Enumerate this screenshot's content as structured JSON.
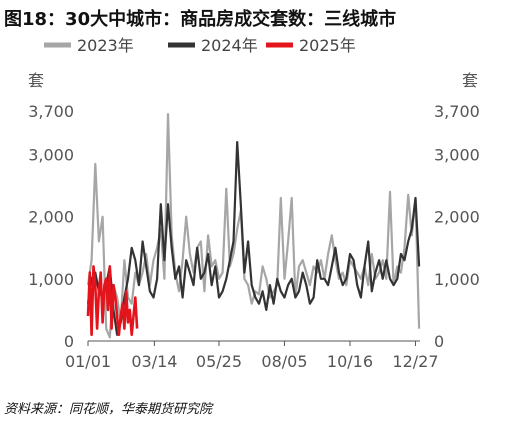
{
  "title": "图18：30大中城市：商品房成交套数：三线城市",
  "source": "资料来源：同花顺，华泰期货研究院",
  "chart_data": {
    "type": "line",
    "y_unit_left": "套",
    "y_unit_right": "套",
    "ylim": [
      0,
      3700
    ],
    "yticks": [
      0,
      1000,
      2000,
      3000,
      3700
    ],
    "ytick_labels": [
      "0",
      "1,000",
      "2,000",
      "3,000",
      "3,700"
    ],
    "xlim": [
      1,
      366
    ],
    "xticks": [
      1,
      74,
      145,
      217,
      289,
      361
    ],
    "xtick_labels": [
      "01/01",
      "03/14",
      "05/25",
      "08/05",
      "10/16",
      "12/27"
    ],
    "legend_position": "top",
    "grid": false,
    "series": [
      {
        "name": "2023年",
        "color": "#a6a6a6",
        "x": [
          1,
          5,
          9,
          13,
          17,
          21,
          25,
          29,
          33,
          37,
          41,
          45,
          49,
          53,
          57,
          61,
          65,
          69,
          73,
          77,
          81,
          85,
          89,
          93,
          97,
          101,
          105,
          109,
          113,
          117,
          121,
          125,
          129,
          133,
          137,
          141,
          145,
          149,
          153,
          157,
          161,
          165,
          169,
          173,
          177,
          181,
          185,
          189,
          193,
          197,
          201,
          205,
          209,
          213,
          217,
          221,
          225,
          229,
          233,
          237,
          241,
          245,
          249,
          253,
          257,
          261,
          265,
          269,
          273,
          277,
          281,
          285,
          289,
          293,
          297,
          301,
          305,
          309,
          313,
          317,
          321,
          325,
          329,
          333,
          337,
          341,
          345,
          349,
          353,
          357,
          361,
          365
        ],
        "values": [
          900,
          1300,
          2850,
          1600,
          2000,
          200,
          60,
          900,
          700,
          300,
          1300,
          700,
          600,
          1100,
          900,
          1100,
          1400,
          900,
          1300,
          1500,
          1800,
          1000,
          3650,
          1700,
          1100,
          800,
          1300,
          2000,
          1400,
          1100,
          1500,
          1600,
          800,
          1700,
          1200,
          1300,
          1000,
          1100,
          2450,
          1200,
          1400,
          1800,
          2100,
          1000,
          900,
          600,
          800,
          750,
          1200,
          1000,
          700,
          800,
          900,
          2300,
          1000,
          1600,
          2300,
          700,
          1200,
          1300,
          1100,
          900,
          1200,
          1100,
          1300,
          1000,
          1400,
          1700,
          1300,
          1000,
          1100,
          900,
          1300,
          1200,
          1100,
          1000,
          1200,
          900,
          1400,
          1000,
          1100,
          1300,
          1000,
          2400,
          900,
          1200,
          1100,
          1500,
          2350,
          1700,
          2300,
          200
        ]
      },
      {
        "name": "2024年",
        "color": "#333333",
        "x": [
          1,
          5,
          9,
          13,
          17,
          21,
          25,
          29,
          33,
          37,
          41,
          45,
          49,
          53,
          57,
          61,
          65,
          69,
          73,
          77,
          81,
          85,
          89,
          93,
          97,
          101,
          105,
          109,
          113,
          117,
          121,
          125,
          129,
          133,
          137,
          141,
          145,
          149,
          153,
          157,
          161,
          165,
          169,
          173,
          177,
          181,
          185,
          189,
          193,
          197,
          201,
          205,
          209,
          213,
          217,
          221,
          225,
          229,
          233,
          237,
          241,
          245,
          249,
          253,
          257,
          261,
          265,
          269,
          273,
          277,
          281,
          285,
          289,
          293,
          297,
          301,
          305,
          309,
          313,
          317,
          321,
          325,
          329,
          333,
          337,
          341,
          345,
          349,
          353,
          357,
          361,
          365
        ],
        "values": [
          600,
          1000,
          1100,
          800,
          700,
          900,
          1200,
          500,
          100,
          300,
          700,
          1000,
          1500,
          1300,
          900,
          1600,
          1200,
          800,
          700,
          1000,
          2200,
          1300,
          2200,
          1500,
          1000,
          1200,
          700,
          1300,
          1100,
          900,
          1500,
          1000,
          1100,
          1400,
          900,
          1200,
          700,
          800,
          1000,
          1300,
          1600,
          3200,
          2200,
          1100,
          1600,
          900,
          700,
          600,
          800,
          500,
          900,
          600,
          1000,
          800,
          700,
          900,
          1000,
          700,
          800,
          1100,
          900,
          600,
          700,
          1300,
          1000,
          1000,
          900,
          1200,
          1500,
          1100,
          900,
          1000,
          1400,
          1300,
          900,
          700,
          1200,
          1600,
          800,
          1100,
          1300,
          1000,
          1300,
          1000,
          900,
          1000,
          1400,
          1300,
          1600,
          1800,
          2300,
          1200
        ]
      },
      {
        "name": "2025年",
        "color": "#e3141b",
        "x": [
          1,
          3,
          5,
          7,
          9,
          11,
          13,
          15,
          17,
          19,
          21,
          23,
          25,
          27,
          29,
          31,
          33,
          35,
          37,
          39,
          41,
          43,
          45,
          47,
          49,
          51,
          53,
          55
        ],
        "values": [
          400,
          1100,
          100,
          1200,
          900,
          200,
          800,
          1100,
          300,
          900,
          1000,
          500,
          1200,
          200,
          900,
          700,
          400,
          100,
          400,
          600,
          200,
          800,
          300,
          500,
          100,
          400,
          700,
          200
        ]
      }
    ]
  }
}
